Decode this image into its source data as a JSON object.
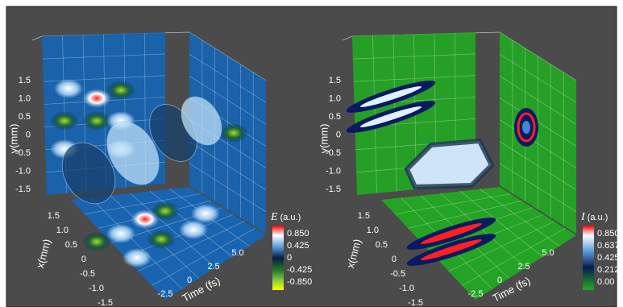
{
  "panels": [
    {
      "y_axis": {
        "label": "y(mm)",
        "ticks": [
          "1.5",
          "1.0",
          "0.5",
          "0",
          "-0.5",
          "-1.0",
          "-1.5"
        ]
      },
      "x_axis": {
        "label": "x(mm)",
        "ticks": [
          "1.5",
          "1.0",
          "0.5",
          "0",
          "-0.5",
          "-1.0",
          "-1.5"
        ]
      },
      "t_axis": {
        "label": "Time (fs)",
        "ticks": [
          "-2.5",
          "0",
          "2.5",
          "5.0"
        ]
      },
      "colorbar": {
        "symbol": "E",
        "unit": "(a.u.)",
        "ticks": [
          "0.850",
          "0.425",
          "0",
          "-0.425",
          "-0.850"
        ]
      }
    },
    {
      "y_axis": {
        "label": "y(mm)",
        "ticks": [
          "1.5",
          "1.0",
          "0.5",
          "0",
          "-0.5",
          "-1.0",
          "-1.5"
        ]
      },
      "x_axis": {
        "label": "x(mm)",
        "ticks": [
          "1.5",
          "1.0",
          "0.5",
          "0",
          "-0.5",
          "-1.0",
          "-1.5"
        ]
      },
      "t_axis": {
        "label": "Time (fs)",
        "ticks": [
          "-2.5",
          "0",
          "2.5",
          "5.0"
        ]
      },
      "colorbar": {
        "symbol": "I",
        "unit": "(a.u.)",
        "ticks": [
          "0.850",
          "0.637",
          "0.425",
          "0.212",
          "0.00"
        ]
      }
    }
  ]
}
